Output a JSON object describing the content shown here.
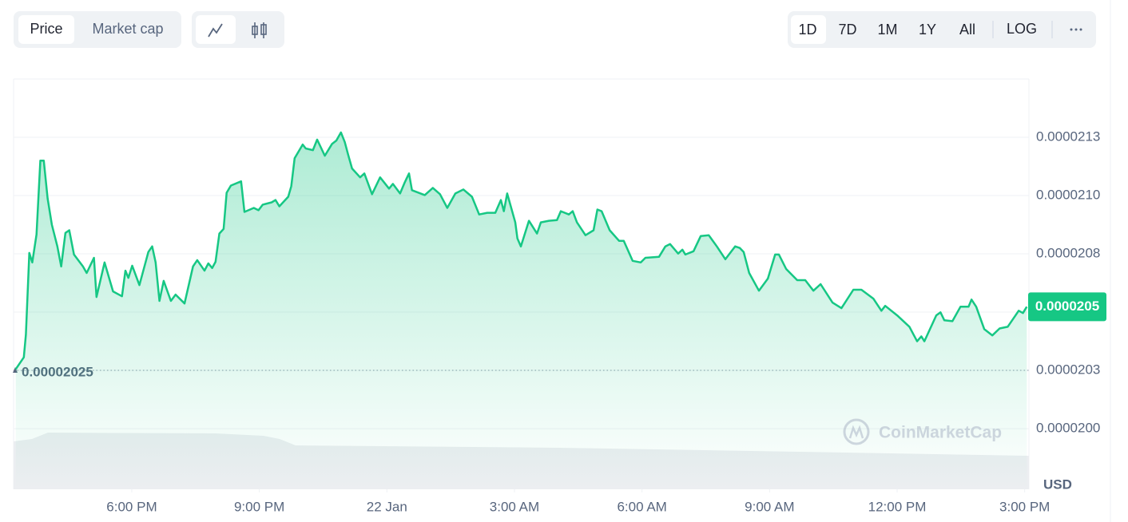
{
  "ui": {
    "metric_tabs": [
      "Price",
      "Market cap"
    ],
    "range_tabs": [
      "1D",
      "7D",
      "1M",
      "1Y",
      "All",
      "LOG"
    ],
    "watermark": "CoinMarketCap"
  },
  "chart_data": {
    "type": "line",
    "color": "#16c784",
    "grid": true,
    "y_axis_label": "USD",
    "baseline": 2.025e-05,
    "last_value_label": "0.0000205",
    "xlim": [
      15.22,
      39.1
    ],
    "xticks": [
      {
        "value": 18,
        "label": "6:00 PM"
      },
      {
        "value": 21,
        "label": "9:00 PM"
      },
      {
        "value": 24,
        "label": "22 Jan"
      },
      {
        "value": 27,
        "label": "3:00 AM"
      },
      {
        "value": 30,
        "label": "6:00 AM"
      },
      {
        "value": 33,
        "label": "9:00 AM"
      },
      {
        "value": 36,
        "label": "12:00 PM"
      },
      {
        "value": 39,
        "label": "3:00 PM"
      }
    ],
    "ylim": [
      1.974e-05,
      2.15e-05
    ],
    "yticks": [
      {
        "value": 2e-05,
        "label": "0.0000200"
      },
      {
        "value": 2.025e-05,
        "label": "0.0000203"
      },
      {
        "value": 2.05e-05,
        "label": "0.0000205"
      },
      {
        "value": 2.075e-05,
        "label": "0.0000208"
      },
      {
        "value": 2.1e-05,
        "label": "0.0000210"
      },
      {
        "value": 2.125e-05,
        "label": "0.0000213"
      }
    ],
    "x": [
      15.27,
      15.46,
      15.51,
      15.59,
      15.66,
      15.76,
      15.85,
      15.93,
      16.02,
      16.12,
      16.25,
      16.34,
      16.44,
      16.53,
      16.64,
      16.85,
      16.94,
      17.11,
      17.17,
      17.36,
      17.56,
      17.77,
      17.85,
      17.92,
      18.01,
      18.18,
      18.39,
      18.48,
      18.56,
      18.65,
      18.75,
      18.92,
      19.03,
      19.24,
      19.44,
      19.54,
      19.71,
      19.8,
      19.89,
      19.97,
      20.06,
      20.16,
      20.23,
      20.33,
      20.57,
      20.65,
      20.87,
      20.98,
      21.08,
      21.29,
      21.38,
      21.47,
      21.68,
      21.75,
      21.83,
      22.02,
      22.09,
      22.26,
      22.36,
      22.54,
      22.71,
      22.81,
      22.92,
      23.01,
      23.09,
      23.18,
      23.37,
      23.47,
      23.65,
      23.84,
      24.05,
      24.14,
      24.31,
      24.42,
      24.52,
      24.59,
      24.89,
      25.08,
      25.25,
      25.42,
      25.61,
      25.8,
      26.0,
      26.17,
      26.36,
      26.55,
      26.68,
      26.75,
      26.83,
      27.02,
      27.07,
      27.15,
      27.34,
      27.53,
      27.62,
      27.81,
      28.0,
      28.09,
      28.28,
      28.37,
      28.47,
      28.67,
      28.86,
      28.95,
      29.05,
      29.24,
      29.46,
      29.57,
      29.78,
      29.97,
      30.08,
      30.4,
      30.55,
      30.66,
      30.85,
      30.95,
      31.02,
      31.21,
      31.38,
      31.57,
      31.76,
      31.96,
      32.19,
      32.3,
      32.39,
      32.52,
      32.75,
      32.96,
      33.13,
      33.22,
      33.39,
      33.65,
      33.84,
      34.03,
      34.2,
      34.48,
      34.69,
      34.97,
      35.16,
      35.44,
      35.63,
      35.72,
      36.0,
      36.29,
      36.47,
      36.57,
      36.64,
      36.92,
      37.02,
      37.11,
      37.3,
      37.49,
      37.68,
      37.75,
      37.86,
      38.05,
      38.24,
      38.41,
      38.6,
      38.77,
      38.86,
      38.96,
      39.05
    ],
    "values": [
      2.0255e-05,
      2.0306e-05,
      2.0403e-05,
      2.0754e-05,
      2.0713e-05,
      2.0833e-05,
      2.115e-05,
      2.115e-05,
      2.0988e-05,
      2.0875e-05,
      2.0782e-05,
      2.0696e-05,
      2.084e-05,
      2.0851e-05,
      2.0747e-05,
      2.0696e-05,
      2.0668e-05,
      2.0733e-05,
      2.0565e-05,
      2.0713e-05,
      2.0589e-05,
      2.0568e-05,
      2.0678e-05,
      2.0647e-05,
      2.0699e-05,
      2.0616e-05,
      2.0758e-05,
      2.0782e-05,
      2.0713e-05,
      2.0548e-05,
      2.0634e-05,
      2.0548e-05,
      2.0575e-05,
      2.0537e-05,
      2.0696e-05,
      2.0723e-05,
      2.0678e-05,
      2.0709e-05,
      2.0689e-05,
      2.0716e-05,
      2.0837e-05,
      2.0857e-05,
      2.1012e-05,
      2.1043e-05,
      2.1061e-05,
      2.093e-05,
      2.0947e-05,
      2.0937e-05,
      2.0961e-05,
      2.0971e-05,
      2.0981e-05,
      2.0954e-05,
      2.0995e-05,
      2.104e-05,
      2.116e-05,
      2.1219e-05,
      2.1202e-05,
      2.1195e-05,
      2.124e-05,
      2.1171e-05,
      2.1222e-05,
      2.1236e-05,
      2.1271e-05,
      2.1229e-05,
      2.1174e-05,
      2.1116e-05,
      2.1078e-05,
      2.1095e-05,
      2.1006e-05,
      2.1078e-05,
      2.103e-05,
      2.105e-05,
      2.1009e-05,
      2.1057e-05,
      2.1095e-05,
      2.1023e-05,
      2.1002e-05,
      2.1033e-05,
      2.1006e-05,
      2.0947e-05,
      2.1009e-05,
      2.1026e-05,
      2.0995e-05,
      2.0919e-05,
      2.0926e-05,
      2.0926e-05,
      2.0981e-05,
      2.0933e-05,
      2.1009e-05,
      2.0885e-05,
      2.0816e-05,
      2.0782e-05,
      2.0892e-05,
      2.0837e-05,
      2.0885e-05,
      2.0892e-05,
      2.0895e-05,
      2.0933e-05,
      2.0919e-05,
      2.0933e-05,
      2.0885e-05,
      2.083e-05,
      2.0851e-05,
      2.094e-05,
      2.0933e-05,
      2.0851e-05,
      2.0806e-05,
      2.0806e-05,
      2.072e-05,
      2.0713e-05,
      2.0733e-05,
      2.0737e-05,
      2.0782e-05,
      2.0792e-05,
      2.0751e-05,
      2.0768e-05,
      2.0747e-05,
      2.0761e-05,
      2.0826e-05,
      2.083e-05,
      2.0782e-05,
      2.0727e-05,
      2.0782e-05,
      2.0775e-05,
      2.0758e-05,
      2.0668e-05,
      2.0592e-05,
      2.0644e-05,
      2.0747e-05,
      2.0747e-05,
      2.0685e-05,
      2.0637e-05,
      2.0637e-05,
      2.0592e-05,
      2.062e-05,
      2.0541e-05,
      2.0517e-05,
      2.0596e-05,
      2.0596e-05,
      2.0558e-05,
      2.0506e-05,
      2.0527e-05,
      2.0486e-05,
      2.0437e-05,
      2.0375e-05,
      2.0396e-05,
      2.0375e-05,
      2.0486e-05,
      2.0499e-05,
      2.0465e-05,
      2.0461e-05,
      2.0523e-05,
      2.0523e-05,
      2.0554e-05,
      2.0523e-05,
      2.0427e-05,
      2.04e-05,
      2.043e-05,
      2.0437e-05,
      2.0482e-05,
      2.0506e-05,
      2.0496e-05,
      2.0523e-05
    ]
  }
}
